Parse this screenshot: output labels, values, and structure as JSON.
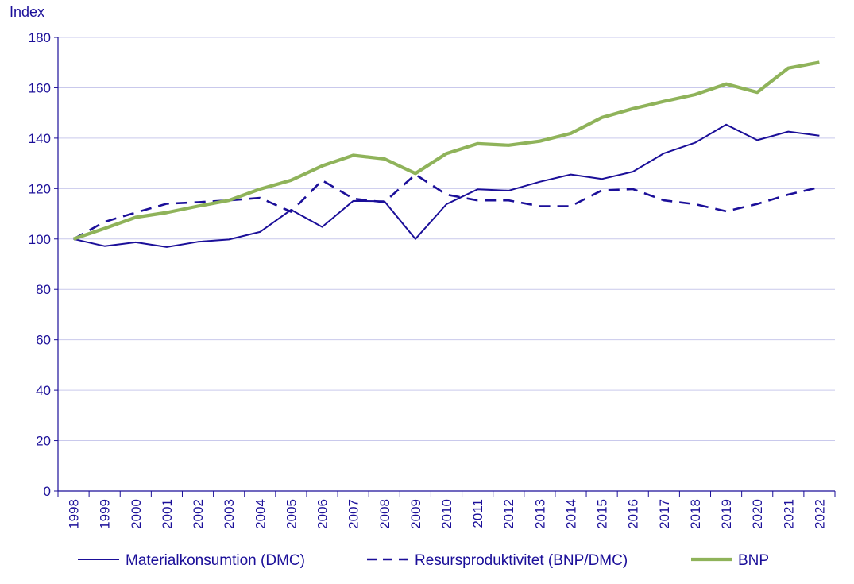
{
  "chart_data": {
    "type": "line",
    "title": "",
    "xlabel": "",
    "ylabel": "Index",
    "ylim": [
      0,
      180
    ],
    "yticks": [
      0,
      20,
      40,
      60,
      80,
      100,
      120,
      140,
      160,
      180
    ],
    "grid": "horizontal",
    "legend_position": "bottom",
    "categories": [
      "1998",
      "1999",
      "2000",
      "2001",
      "2002",
      "2003",
      "2004",
      "2005",
      "2006",
      "2007",
      "2008",
      "2009",
      "2010",
      "2011",
      "2012",
      "2013",
      "2014",
      "2015",
      "2016",
      "2017",
      "2018",
      "2019",
      "2020",
      "2021",
      "2022"
    ],
    "series": [
      {
        "name": "Materialkonsumtion (DMC)",
        "style": "solid",
        "color": "#1b0f99",
        "values": [
          100,
          97.2,
          98.7,
          96.8,
          98.9,
          99.8,
          102.8,
          111.6,
          104.8,
          115.1,
          115.0,
          100.0,
          113.8,
          119.7,
          119.2,
          122.7,
          125.6,
          123.8,
          126.7,
          134.0,
          138.2,
          145.4,
          139.2,
          142.6,
          141.0
        ]
      },
      {
        "name": "Resursproduktivitet (BNP/DMC)",
        "style": "dashed",
        "color": "#1b0f99",
        "values": [
          100,
          106.8,
          110.5,
          114.0,
          114.6,
          115.3,
          116.3,
          110.8,
          123.3,
          116.0,
          114.6,
          125.6,
          117.6,
          115.3,
          115.3,
          113.0,
          113.0,
          119.3,
          119.8,
          115.3,
          113.8,
          111.0,
          113.9,
          117.6,
          120.5
        ]
      },
      {
        "name": "BNP",
        "style": "solid-thick",
        "color": "#8fb35a",
        "values": [
          100,
          104.2,
          108.6,
          110.5,
          113.0,
          115.3,
          119.8,
          123.3,
          129.0,
          133.2,
          131.8,
          126.0,
          133.9,
          137.8,
          137.2,
          138.8,
          141.9,
          148.2,
          151.7,
          154.6,
          157.3,
          161.5,
          158.2,
          167.8,
          170.1
        ]
      }
    ]
  }
}
